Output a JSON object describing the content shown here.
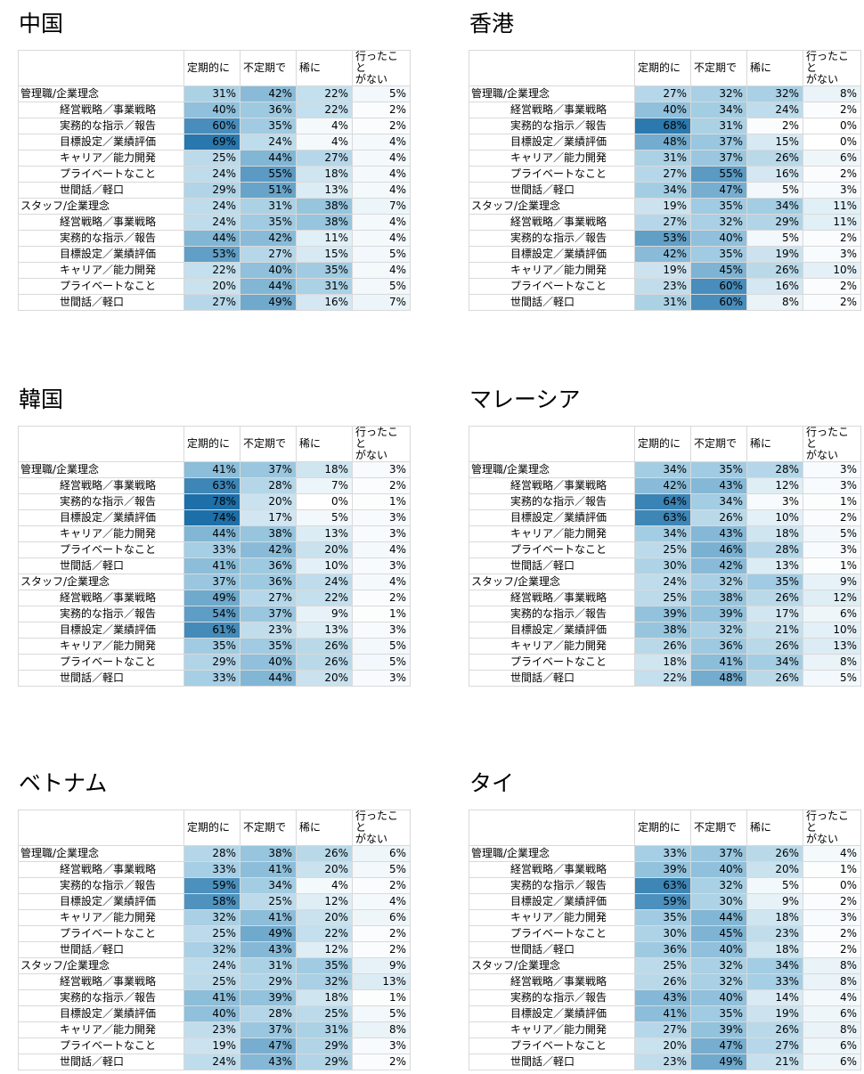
{
  "chart_data": [
    {
      "type": "heatmap",
      "title": "中国",
      "columns": [
        "定期的に",
        "不定期で",
        "稀に",
        "行ったことがない"
      ],
      "column_labels": [
        "定期的に",
        "不定期で",
        "稀に",
        "行ったこと\nがない"
      ],
      "rows": [
        {
          "label": "管理職/企業理念",
          "values": [
            "31%",
            "42%",
            "22%",
            "5%"
          ]
        },
        {
          "label": "経営戦略／事業戦略",
          "values": [
            "40%",
            "36%",
            "22%",
            "2%"
          ]
        },
        {
          "label": "実務的な指示／報告",
          "values": [
            "60%",
            "35%",
            "4%",
            "2%"
          ]
        },
        {
          "label": "目標設定／業績評価",
          "values": [
            "69%",
            "24%",
            "4%",
            "4%"
          ]
        },
        {
          "label": "キャリア／能力開発",
          "values": [
            "25%",
            "44%",
            "27%",
            "4%"
          ]
        },
        {
          "label": "プライベートなこと",
          "values": [
            "24%",
            "55%",
            "18%",
            "4%"
          ]
        },
        {
          "label": "世間話／軽口",
          "values": [
            "29%",
            "51%",
            "13%",
            "4%"
          ]
        },
        {
          "label": "スタッフ/企業理念",
          "values": [
            "24%",
            "31%",
            "38%",
            "7%"
          ]
        },
        {
          "label": "経営戦略／事業戦略",
          "values": [
            "24%",
            "35%",
            "38%",
            "4%"
          ]
        },
        {
          "label": "実務的な指示／報告",
          "values": [
            "44%",
            "42%",
            "11%",
            "4%"
          ]
        },
        {
          "label": "目標設定／業績評価",
          "values": [
            "53%",
            "27%",
            "15%",
            "5%"
          ]
        },
        {
          "label": "キャリア／能力開発",
          "values": [
            "22%",
            "40%",
            "35%",
            "4%"
          ]
        },
        {
          "label": "プライベートなこと",
          "values": [
            "20%",
            "44%",
            "31%",
            "5%"
          ]
        },
        {
          "label": "世間話／軽口",
          "values": [
            "27%",
            "49%",
            "16%",
            "7%"
          ]
        }
      ]
    },
    {
      "type": "heatmap",
      "title": "香港",
      "columns": [
        "定期的に",
        "不定期で",
        "稀に",
        "行ったことがない"
      ],
      "column_labels": [
        "定期的に",
        "不定期で",
        "稀に",
        "行ったこと\nがない"
      ],
      "rows": [
        {
          "label": "管理職/企業理念",
          "values": [
            "27%",
            "32%",
            "32%",
            "8%"
          ]
        },
        {
          "label": "経営戦略／事業戦略",
          "values": [
            "40%",
            "34%",
            "24%",
            "2%"
          ]
        },
        {
          "label": "実務的な指示／報告",
          "values": [
            "68%",
            "31%",
            "2%",
            "0%"
          ]
        },
        {
          "label": "目標設定／業績評価",
          "values": [
            "48%",
            "37%",
            "15%",
            "0%"
          ]
        },
        {
          "label": "キャリア／能力開発",
          "values": [
            "31%",
            "37%",
            "26%",
            "6%"
          ]
        },
        {
          "label": "プライベートなこと",
          "values": [
            "27%",
            "55%",
            "16%",
            "2%"
          ]
        },
        {
          "label": "世間話／軽口",
          "values": [
            "34%",
            "47%",
            "5%",
            "3%"
          ]
        },
        {
          "label": "スタッフ/企業理念",
          "values": [
            "19%",
            "35%",
            "34%",
            "11%"
          ]
        },
        {
          "label": "経営戦略／事業戦略",
          "values": [
            "27%",
            "32%",
            "29%",
            "11%"
          ]
        },
        {
          "label": "実務的な指示／報告",
          "values": [
            "53%",
            "40%",
            "5%",
            "2%"
          ]
        },
        {
          "label": "目標設定／業績評価",
          "values": [
            "42%",
            "35%",
            "19%",
            "3%"
          ]
        },
        {
          "label": "キャリア／能力開発",
          "values": [
            "19%",
            "45%",
            "26%",
            "10%"
          ]
        },
        {
          "label": "プライベートなこと",
          "values": [
            "23%",
            "60%",
            "16%",
            "2%"
          ]
        },
        {
          "label": "世間話／軽口",
          "values": [
            "31%",
            "60%",
            "8%",
            "2%"
          ]
        }
      ]
    },
    {
      "type": "heatmap",
      "title": "韓国",
      "columns": [
        "定期的に",
        "不定期で",
        "稀に",
        "行ったことがない"
      ],
      "column_labels": [
        "定期的に",
        "不定期で",
        "稀に",
        "行ったこと\nがない"
      ],
      "rows": [
        {
          "label": "管理職/企業理念",
          "values": [
            "41%",
            "37%",
            "18%",
            "3%"
          ]
        },
        {
          "label": "経営戦略／事業戦略",
          "values": [
            "63%",
            "28%",
            "7%",
            "2%"
          ]
        },
        {
          "label": "実務的な指示／報告",
          "values": [
            "78%",
            "20%",
            "0%",
            "1%"
          ]
        },
        {
          "label": "目標設定／業績評価",
          "values": [
            "74%",
            "17%",
            "5%",
            "3%"
          ]
        },
        {
          "label": "キャリア／能力開発",
          "values": [
            "44%",
            "38%",
            "13%",
            "3%"
          ]
        },
        {
          "label": "プライベートなこと",
          "values": [
            "33%",
            "42%",
            "20%",
            "4%"
          ]
        },
        {
          "label": "世間話／軽口",
          "values": [
            "41%",
            "36%",
            "10%",
            "3%"
          ]
        },
        {
          "label": "スタッフ/企業理念",
          "values": [
            "37%",
            "36%",
            "24%",
            "4%"
          ]
        },
        {
          "label": "経営戦略／事業戦略",
          "values": [
            "49%",
            "27%",
            "22%",
            "2%"
          ]
        },
        {
          "label": "実務的な指示／報告",
          "values": [
            "54%",
            "37%",
            "9%",
            "1%"
          ]
        },
        {
          "label": "目標設定／業績評価",
          "values": [
            "61%",
            "23%",
            "13%",
            "3%"
          ]
        },
        {
          "label": "キャリア／能力開発",
          "values": [
            "35%",
            "35%",
            "26%",
            "5%"
          ]
        },
        {
          "label": "プライベートなこと",
          "values": [
            "29%",
            "40%",
            "26%",
            "5%"
          ]
        },
        {
          "label": "世間話／軽口",
          "values": [
            "33%",
            "44%",
            "20%",
            "3%"
          ]
        }
      ]
    },
    {
      "type": "heatmap",
      "title": "マレーシア",
      "columns": [
        "定期的に",
        "不定期で",
        "稀に",
        "行ったことがない"
      ],
      "column_labels": [
        "定期的に",
        "不定期で",
        "稀に",
        "行ったこと\nがない"
      ],
      "rows": [
        {
          "label": "管理職/企業理念",
          "values": [
            "34%",
            "35%",
            "28%",
            "3%"
          ]
        },
        {
          "label": "経営戦略／事業戦略",
          "values": [
            "42%",
            "43%",
            "12%",
            "3%"
          ]
        },
        {
          "label": "実務的な指示／報告",
          "values": [
            "64%",
            "34%",
            "3%",
            "1%"
          ]
        },
        {
          "label": "目標設定／業績評価",
          "values": [
            "63%",
            "26%",
            "10%",
            "2%"
          ]
        },
        {
          "label": "キャリア／能力開発",
          "values": [
            "34%",
            "43%",
            "18%",
            "5%"
          ]
        },
        {
          "label": "プライベートなこと",
          "values": [
            "25%",
            "46%",
            "28%",
            "3%"
          ]
        },
        {
          "label": "世間話／軽口",
          "values": [
            "30%",
            "42%",
            "13%",
            "1%"
          ]
        },
        {
          "label": "スタッフ/企業理念",
          "values": [
            "24%",
            "32%",
            "35%",
            "9%"
          ]
        },
        {
          "label": "経営戦略／事業戦略",
          "values": [
            "25%",
            "38%",
            "26%",
            "12%"
          ]
        },
        {
          "label": "実務的な指示／報告",
          "values": [
            "39%",
            "39%",
            "17%",
            "6%"
          ]
        },
        {
          "label": "目標設定／業績評価",
          "values": [
            "38%",
            "32%",
            "21%",
            "10%"
          ]
        },
        {
          "label": "キャリア／能力開発",
          "values": [
            "26%",
            "36%",
            "26%",
            "13%"
          ]
        },
        {
          "label": "プライベートなこと",
          "values": [
            "18%",
            "41%",
            "34%",
            "8%"
          ]
        },
        {
          "label": "世間話／軽口",
          "values": [
            "22%",
            "48%",
            "26%",
            "5%"
          ]
        }
      ]
    },
    {
      "type": "heatmap",
      "title": "ベトナム",
      "columns": [
        "定期的に",
        "不定期で",
        "稀に",
        "行ったことがない"
      ],
      "column_labels": [
        "定期的に",
        "不定期で",
        "稀に",
        "行ったこと\nがない"
      ],
      "rows": [
        {
          "label": "管理職/企業理念",
          "values": [
            "28%",
            "38%",
            "26%",
            "6%"
          ]
        },
        {
          "label": "経営戦略／事業戦略",
          "values": [
            "33%",
            "41%",
            "20%",
            "5%"
          ]
        },
        {
          "label": "実務的な指示／報告",
          "values": [
            "59%",
            "34%",
            "4%",
            "2%"
          ]
        },
        {
          "label": "目標設定／業績評価",
          "values": [
            "58%",
            "25%",
            "12%",
            "4%"
          ]
        },
        {
          "label": "キャリア／能力開発",
          "values": [
            "32%",
            "41%",
            "20%",
            "6%"
          ]
        },
        {
          "label": "プライベートなこと",
          "values": [
            "25%",
            "49%",
            "22%",
            "2%"
          ]
        },
        {
          "label": "世間話／軽口",
          "values": [
            "32%",
            "43%",
            "12%",
            "2%"
          ]
        },
        {
          "label": "スタッフ/企業理念",
          "values": [
            "24%",
            "31%",
            "35%",
            "9%"
          ]
        },
        {
          "label": "経営戦略／事業戦略",
          "values": [
            "25%",
            "29%",
            "32%",
            "13%"
          ]
        },
        {
          "label": "実務的な指示／報告",
          "values": [
            "41%",
            "39%",
            "18%",
            "1%"
          ]
        },
        {
          "label": "目標設定／業績評価",
          "values": [
            "40%",
            "28%",
            "25%",
            "5%"
          ]
        },
        {
          "label": "キャリア／能力開発",
          "values": [
            "23%",
            "37%",
            "31%",
            "8%"
          ]
        },
        {
          "label": "プライベートなこと",
          "values": [
            "19%",
            "47%",
            "29%",
            "3%"
          ]
        },
        {
          "label": "世間話／軽口",
          "values": [
            "24%",
            "43%",
            "29%",
            "2%"
          ]
        }
      ]
    },
    {
      "type": "heatmap",
      "title": "タイ",
      "columns": [
        "定期的に",
        "不定期で",
        "稀に",
        "行ったことがない"
      ],
      "column_labels": [
        "定期的に",
        "不定期で",
        "稀に",
        "行ったこと\nがない"
      ],
      "rows": [
        {
          "label": "管理職/企業理念",
          "values": [
            "33%",
            "37%",
            "26%",
            "4%"
          ]
        },
        {
          "label": "経営戦略／事業戦略",
          "values": [
            "39%",
            "40%",
            "20%",
            "1%"
          ]
        },
        {
          "label": "実務的な指示／報告",
          "values": [
            "63%",
            "32%",
            "5%",
            "0%"
          ]
        },
        {
          "label": "目標設定／業績評価",
          "values": [
            "59%",
            "30%",
            "9%",
            "2%"
          ]
        },
        {
          "label": "キャリア／能力開発",
          "values": [
            "35%",
            "44%",
            "18%",
            "3%"
          ]
        },
        {
          "label": "プライベートなこと",
          "values": [
            "30%",
            "45%",
            "23%",
            "2%"
          ]
        },
        {
          "label": "世間話／軽口",
          "values": [
            "36%",
            "40%",
            "18%",
            "2%"
          ]
        },
        {
          "label": "スタッフ/企業理念",
          "values": [
            "25%",
            "32%",
            "34%",
            "8%"
          ]
        },
        {
          "label": "経営戦略／事業戦略",
          "values": [
            "26%",
            "32%",
            "33%",
            "8%"
          ]
        },
        {
          "label": "実務的な指示／報告",
          "values": [
            "43%",
            "40%",
            "14%",
            "4%"
          ]
        },
        {
          "label": "目標設定／業績評価",
          "values": [
            "41%",
            "35%",
            "19%",
            "6%"
          ]
        },
        {
          "label": "キャリア／能力開発",
          "values": [
            "27%",
            "39%",
            "26%",
            "8%"
          ]
        },
        {
          "label": "プライベートなこと",
          "values": [
            "20%",
            "47%",
            "27%",
            "6%"
          ]
        },
        {
          "label": "世間話／軽口",
          "values": [
            "23%",
            "49%",
            "21%",
            "6%"
          ]
        }
      ]
    }
  ],
  "colors": {
    "scale_low": "#ffffff",
    "scale_mid": "#9ecae1",
    "scale_high": "#1d6fa8",
    "border": "#d9d9d9"
  }
}
